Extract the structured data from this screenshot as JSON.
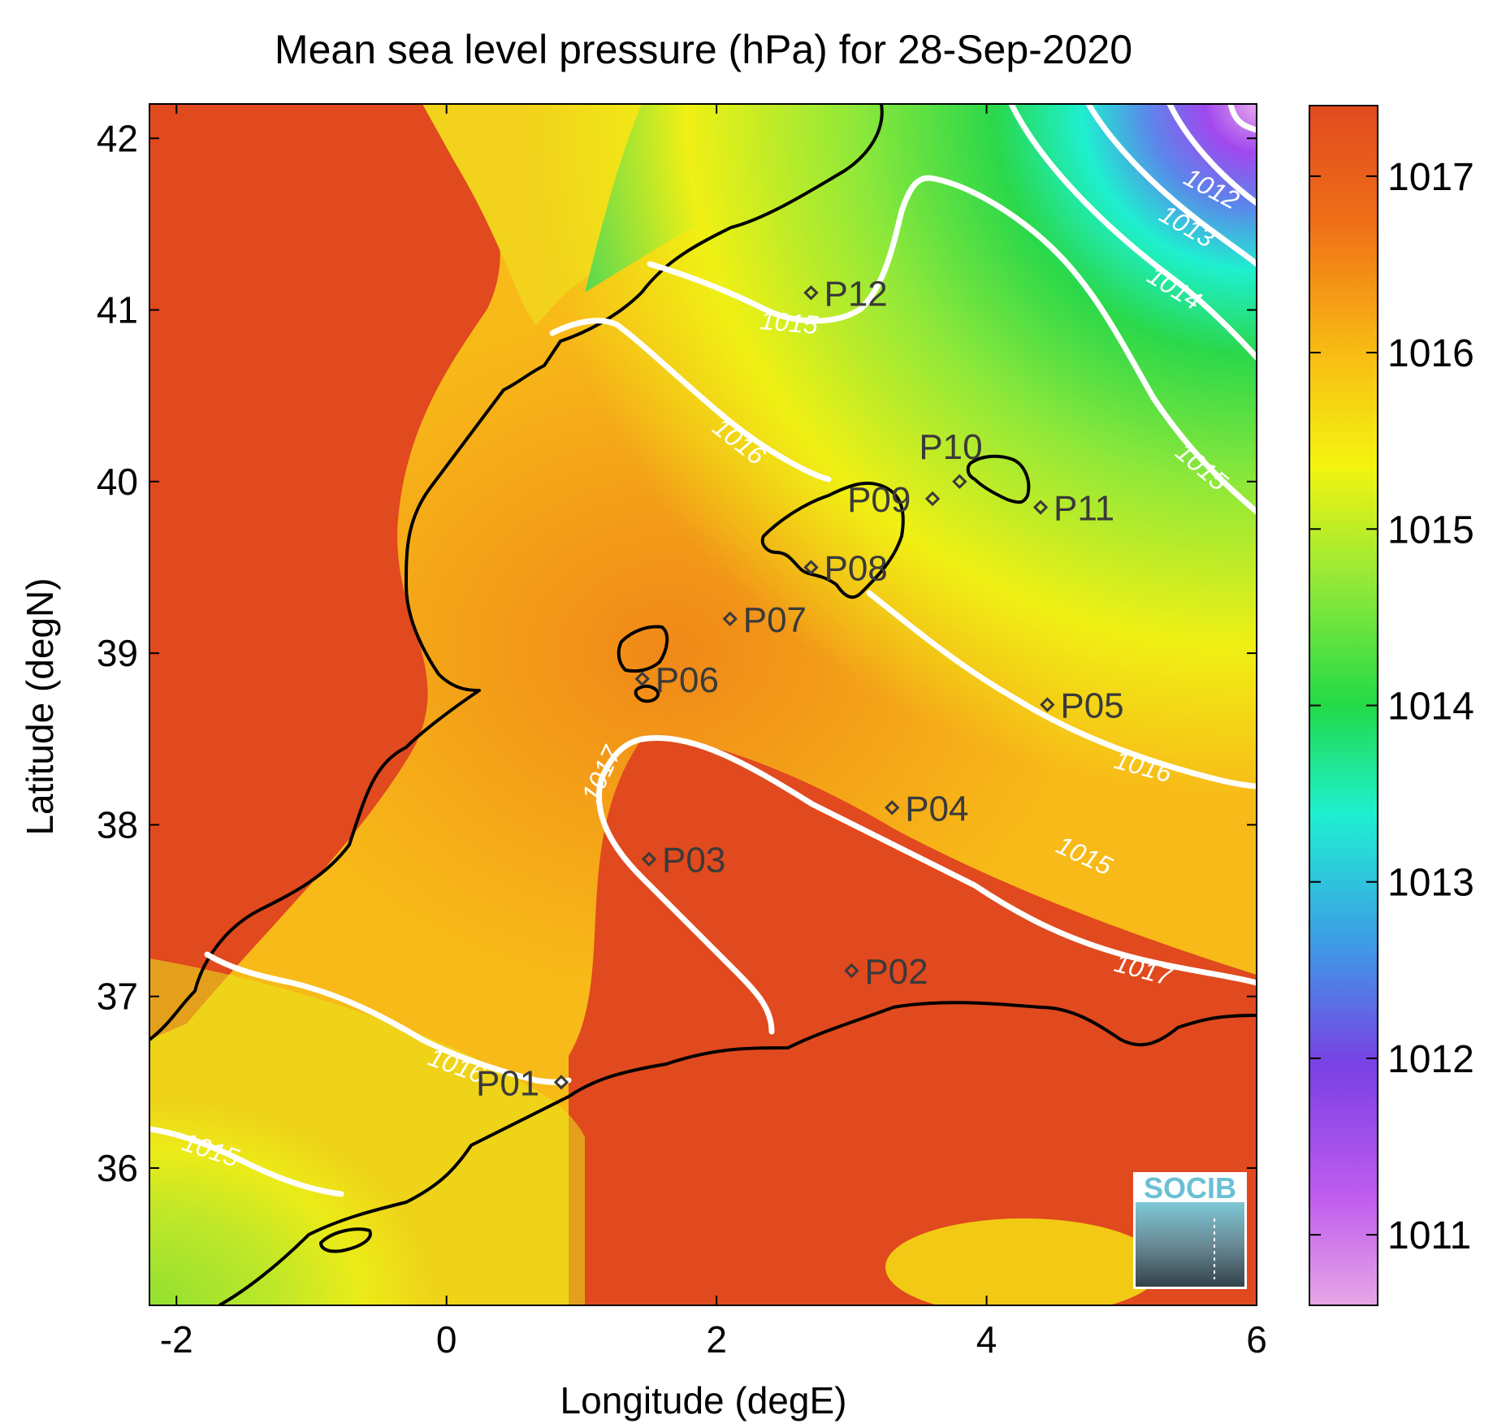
{
  "title": "Mean sea level pressure (hPa) for 28-Sep-2020",
  "axes": {
    "xlabel": "Longitude (degE)",
    "ylabel": "Latitude (degN)",
    "xlim": [
      -2.2,
      6.0
    ],
    "ylim": [
      35.2,
      42.2
    ],
    "xticks": [
      "-2",
      "0",
      "2",
      "4",
      "6"
    ],
    "yticks": [
      "36",
      "37",
      "38",
      "39",
      "40",
      "41",
      "42"
    ]
  },
  "colorbar": {
    "range": [
      1010.6,
      1017.4
    ],
    "ticks": [
      "1011",
      "1012",
      "1013",
      "1014",
      "1015",
      "1016",
      "1017"
    ],
    "colors": [
      "#e6a6e6",
      "#b048ee",
      "#7040e0",
      "#3e9ae6",
      "#1ef0d0",
      "#2ad84a",
      "#8fe83a",
      "#f4f410",
      "#f8b814",
      "#f07018",
      "#e04a1e"
    ]
  },
  "contour_labels": [
    "1012",
    "1013",
    "1014",
    "1015",
    "1015",
    "1016",
    "1017",
    "1017",
    "1016",
    "1016",
    "1015",
    "1015"
  ],
  "stations": [
    {
      "name": "P01",
      "lon": 0.85,
      "lat": 36.5
    },
    {
      "name": "P02",
      "lon": 3.0,
      "lat": 37.15
    },
    {
      "name": "P03",
      "lon": 1.5,
      "lat": 37.8
    },
    {
      "name": "P04",
      "lon": 3.3,
      "lat": 38.1
    },
    {
      "name": "P05",
      "lon": 4.45,
      "lat": 38.7
    },
    {
      "name": "P06",
      "lon": 1.45,
      "lat": 38.85
    },
    {
      "name": "P07",
      "lon": 2.1,
      "lat": 39.2
    },
    {
      "name": "P08",
      "lon": 2.7,
      "lat": 39.5
    },
    {
      "name": "P09",
      "lon": 3.6,
      "lat": 39.9
    },
    {
      "name": "P10",
      "lon": 3.8,
      "lat": 40.0
    },
    {
      "name": "P11",
      "lon": 4.4,
      "lat": 39.85
    },
    {
      "name": "P12",
      "lon": 2.7,
      "lat": 41.1
    }
  ],
  "logo": "SOCIB"
}
